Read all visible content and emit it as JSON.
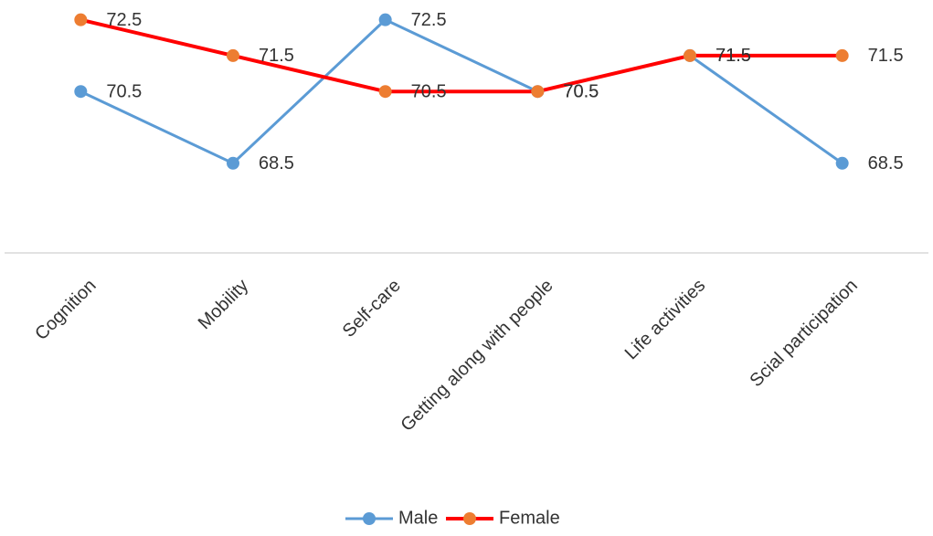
{
  "chart_data": {
    "type": "line",
    "categories": [
      "Cognition",
      "Mobility",
      "Self-care",
      "Getting along with people",
      "Life activities",
      "Scial participation"
    ],
    "series": [
      {
        "name": "Male",
        "color": "#5b9bd5",
        "marker_color": "#5b9bd5",
        "values": [
          70.5,
          68.5,
          72.5,
          70.5,
          71.5,
          68.5
        ]
      },
      {
        "name": "Female",
        "color": "#ff0000",
        "marker_color": "#ed7d31",
        "values": [
          72.5,
          71.5,
          70.5,
          70.5,
          71.5,
          71.5
        ]
      }
    ],
    "ylim": [
      66,
      73
    ],
    "legend": "bottom"
  }
}
